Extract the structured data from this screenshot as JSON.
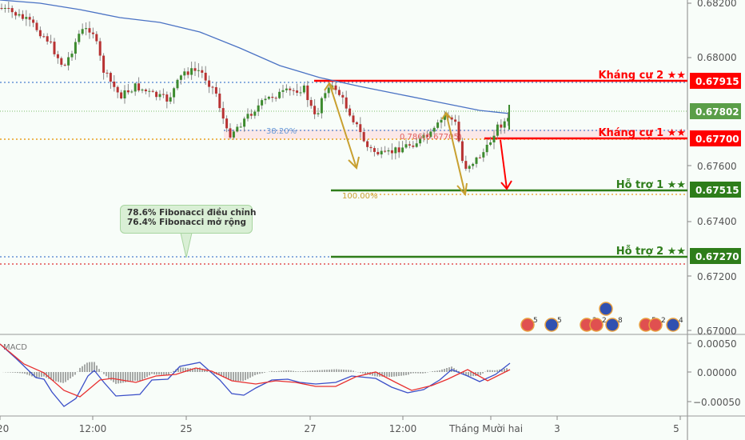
{
  "chart_data": {
    "type": "candlestick",
    "symbol_context": "AUD/USD (implied by AU/US event icons)",
    "price_axis": {
      "ticks": [
        "0.68200",
        "0.68000",
        "0.67600",
        "0.67400",
        "0.67200",
        "0.67000"
      ],
      "range": [
        0.6695,
        0.6825
      ]
    },
    "macd_axis": {
      "ticks": [
        "0.00050",
        "0.00000",
        "−0.00050"
      ]
    },
    "time_axis": {
      "ticks": [
        "20",
        "12:00",
        "25",
        "27",
        "12:00",
        "Tháng Mười hai",
        "3",
        "5"
      ]
    },
    "levels": [
      {
        "name": "Kháng cự 2 ★★",
        "price": "0.67915",
        "color": "#ff0000",
        "type": "resistance"
      },
      {
        "name": "Kháng cự 1 ★★",
        "price": "0.67700",
        "color": "#ff0000",
        "type": "resistance"
      },
      {
        "name": "Hỗ trợ 1 ★★",
        "price": "0.67515",
        "color": "#2e7d1a",
        "type": "support"
      },
      {
        "name": "Hỗ trợ 2 ★★",
        "price": "0.67270",
        "color": "#2e7d1a",
        "type": "support"
      }
    ],
    "current_price": {
      "value": "0.67802",
      "color": "#5a9e48"
    },
    "fib_labels": {
      "retracement_38": "38.20%",
      "ext_786": "0.786(0.67705)",
      "ext_100": "100.00%"
    },
    "indicator": {
      "name": "MACD"
    },
    "moving_average": {
      "color": "#4a72c4",
      "description": "descending MA line"
    },
    "events": [
      {
        "flag": "US",
        "count": "5"
      },
      {
        "flag": "AU",
        "count": "5"
      },
      {
        "flag": "US",
        "count": "2"
      },
      {
        "flag": "US",
        "count": "2"
      },
      {
        "flag": "AU",
        "count": "8"
      },
      {
        "flag": "AU",
        "count": "5"
      },
      {
        "flag": "US",
        "count": "5"
      },
      {
        "flag": "US",
        "count": "2"
      },
      {
        "flag": "AU",
        "count": "4"
      },
      {
        "flag": "AU",
        "count": ""
      }
    ]
  },
  "callout": {
    "line1": "78.6% Fibonacci điều chỉnh",
    "line2": "76.4% Fibonacci mở rộng"
  },
  "colors": {
    "background": "#f8fdf9",
    "bull_candle": "#3d8b2f",
    "bear_candle": "#b83232",
    "resistance": "#ff0000",
    "support": "#2e7d1a",
    "ma": "#4a72c4",
    "fib_arrow": "#c8a030",
    "macd_line": "#3a4ec8",
    "signal_line": "#e83030"
  }
}
